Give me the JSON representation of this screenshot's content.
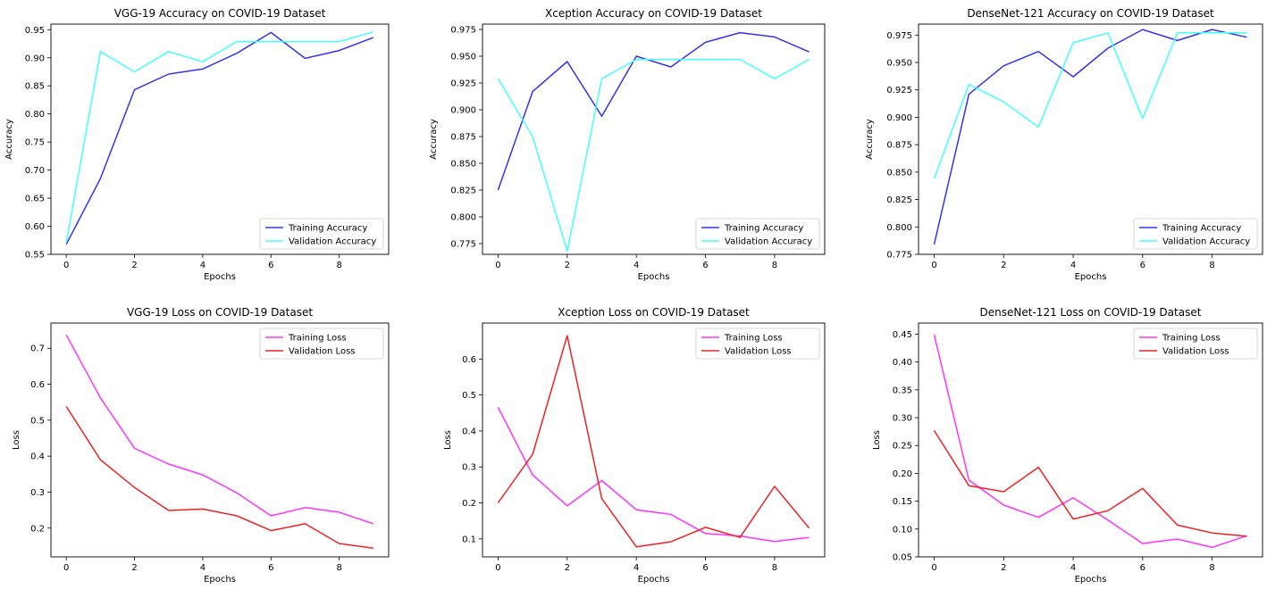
{
  "chart_data": [
    {
      "type": "line",
      "title": "VGG-19 Accuracy on COVID-19 Dataset",
      "xlabel": "Epochs",
      "ylabel": "Accuracy",
      "xlim": [
        -0.45,
        9.45
      ],
      "ylim": [
        0.55,
        0.96
      ],
      "xticks": [
        0,
        2,
        4,
        6,
        8
      ],
      "yticks": [
        0.55,
        0.6,
        0.65,
        0.7,
        0.75,
        0.8,
        0.85,
        0.9,
        0.95
      ],
      "ytick_decimals": 2,
      "legend_loc": "lower-right",
      "grid": false,
      "x": [
        0,
        1,
        2,
        3,
        4,
        5,
        6,
        7,
        8,
        9
      ],
      "series": [
        {
          "name": "Training Accuracy",
          "color": "#3333ee",
          "values": [
            0.568,
            0.685,
            0.843,
            0.871,
            0.88,
            0.908,
            0.945,
            0.899,
            0.913,
            0.936
          ]
        },
        {
          "name": "Validation Accuracy",
          "color": "#44ffff",
          "values": [
            0.571,
            0.911,
            0.875,
            0.911,
            0.893,
            0.929,
            0.929,
            0.929,
            0.929,
            0.946
          ]
        }
      ]
    },
    {
      "type": "line",
      "title": "Xception Accuracy on COVID-19 Dataset",
      "xlabel": "Epochs",
      "ylabel": "Accuracy",
      "xlim": [
        -0.45,
        9.45
      ],
      "ylim": [
        0.765,
        0.98
      ],
      "xticks": [
        0,
        2,
        4,
        6,
        8
      ],
      "yticks": [
        0.775,
        0.8,
        0.825,
        0.85,
        0.875,
        0.9,
        0.925,
        0.95,
        0.975
      ],
      "ytick_decimals": 3,
      "legend_loc": "lower-right",
      "grid": false,
      "x": [
        0,
        1,
        2,
        3,
        4,
        5,
        6,
        7,
        8,
        9
      ],
      "series": [
        {
          "name": "Training Accuracy",
          "color": "#3333ee",
          "values": [
            0.825,
            0.917,
            0.945,
            0.894,
            0.95,
            0.94,
            0.963,
            0.972,
            0.968,
            0.954
          ]
        },
        {
          "name": "Validation Accuracy",
          "color": "#44ffff",
          "values": [
            0.929,
            0.875,
            0.768,
            0.929,
            0.947,
            0.947,
            0.947,
            0.947,
            0.929,
            0.947
          ]
        }
      ]
    },
    {
      "type": "line",
      "title": "DenseNet-121 Accuracy on COVID-19 Dataset",
      "xlabel": "Epochs",
      "ylabel": "Accuracy",
      "xlim": [
        -0.45,
        9.45
      ],
      "ylim": [
        0.775,
        0.985
      ],
      "xticks": [
        0,
        2,
        4,
        6,
        8
      ],
      "yticks": [
        0.775,
        0.8,
        0.825,
        0.85,
        0.875,
        0.9,
        0.925,
        0.95,
        0.975
      ],
      "ytick_decimals": 3,
      "legend_loc": "lower-right",
      "grid": false,
      "x": [
        0,
        1,
        2,
        3,
        4,
        5,
        6,
        7,
        8,
        9
      ],
      "series": [
        {
          "name": "Training Accuracy",
          "color": "#3333ee",
          "values": [
            0.784,
            0.921,
            0.947,
            0.96,
            0.937,
            0.963,
            0.98,
            0.97,
            0.98,
            0.973
          ]
        },
        {
          "name": "Validation Accuracy",
          "color": "#44ffff",
          "values": [
            0.844,
            0.93,
            0.914,
            0.891,
            0.968,
            0.977,
            0.899,
            0.977,
            0.977,
            0.977
          ]
        }
      ]
    },
    {
      "type": "line",
      "title": "VGG-19 Loss on COVID-19 Dataset",
      "xlabel": "Epochs",
      "ylabel": "Loss",
      "xlim": [
        -0.45,
        9.45
      ],
      "ylim": [
        0.12,
        0.77
      ],
      "xticks": [
        0,
        2,
        4,
        6,
        8
      ],
      "yticks": [
        0.2,
        0.3,
        0.4,
        0.5,
        0.6,
        0.7
      ],
      "ytick_decimals": 1,
      "legend_loc": "upper-right",
      "grid": false,
      "x": [
        0,
        1,
        2,
        3,
        4,
        5,
        6,
        7,
        8,
        9
      ],
      "series": [
        {
          "name": "Training Loss",
          "color": "#ff33ff",
          "values": [
            0.737,
            0.562,
            0.422,
            0.378,
            0.348,
            0.298,
            0.234,
            0.257,
            0.244,
            0.212
          ]
        },
        {
          "name": "Validation Loss",
          "color": "#ee2222",
          "values": [
            0.538,
            0.39,
            0.313,
            0.249,
            0.253,
            0.234,
            0.193,
            0.212,
            0.157,
            0.144
          ]
        }
      ]
    },
    {
      "type": "line",
      "title": "Xception Loss on COVID-19 Dataset",
      "xlabel": "Epochs",
      "ylabel": "Loss",
      "xlim": [
        -0.45,
        9.45
      ],
      "ylim": [
        0.05,
        0.7
      ],
      "xticks": [
        0,
        2,
        4,
        6,
        8
      ],
      "yticks": [
        0.1,
        0.2,
        0.3,
        0.4,
        0.5,
        0.6
      ],
      "ytick_decimals": 1,
      "legend_loc": "upper-right",
      "grid": false,
      "x": [
        0,
        1,
        2,
        3,
        4,
        5,
        6,
        7,
        8,
        9
      ],
      "series": [
        {
          "name": "Training Loss",
          "color": "#ff33ff",
          "values": [
            0.466,
            0.278,
            0.192,
            0.262,
            0.181,
            0.168,
            0.115,
            0.108,
            0.093,
            0.104
          ]
        },
        {
          "name": "Validation Loss",
          "color": "#ee2222",
          "values": [
            0.2,
            0.335,
            0.665,
            0.212,
            0.078,
            0.092,
            0.132,
            0.104,
            0.246,
            0.13
          ]
        }
      ]
    },
    {
      "type": "line",
      "title": "DenseNet-121 Loss on COVID-19 Dataset",
      "xlabel": "Epochs",
      "ylabel": "Loss",
      "xlim": [
        -0.45,
        9.45
      ],
      "ylim": [
        0.05,
        0.47
      ],
      "xticks": [
        0,
        2,
        4,
        6,
        8
      ],
      "yticks": [
        0.05,
        0.1,
        0.15,
        0.2,
        0.25,
        0.3,
        0.35,
        0.4,
        0.45
      ],
      "ytick_decimals": 2,
      "legend_loc": "upper-right",
      "grid": false,
      "x": [
        0,
        1,
        2,
        3,
        4,
        5,
        6,
        7,
        8,
        9
      ],
      "series": [
        {
          "name": "Training Loss",
          "color": "#ff33ff",
          "values": [
            0.449,
            0.188,
            0.143,
            0.121,
            0.156,
            0.116,
            0.074,
            0.082,
            0.067,
            0.088
          ]
        },
        {
          "name": "Validation Loss",
          "color": "#ee2222",
          "values": [
            0.277,
            0.178,
            0.167,
            0.211,
            0.118,
            0.133,
            0.173,
            0.107,
            0.093,
            0.087
          ]
        }
      ]
    }
  ]
}
